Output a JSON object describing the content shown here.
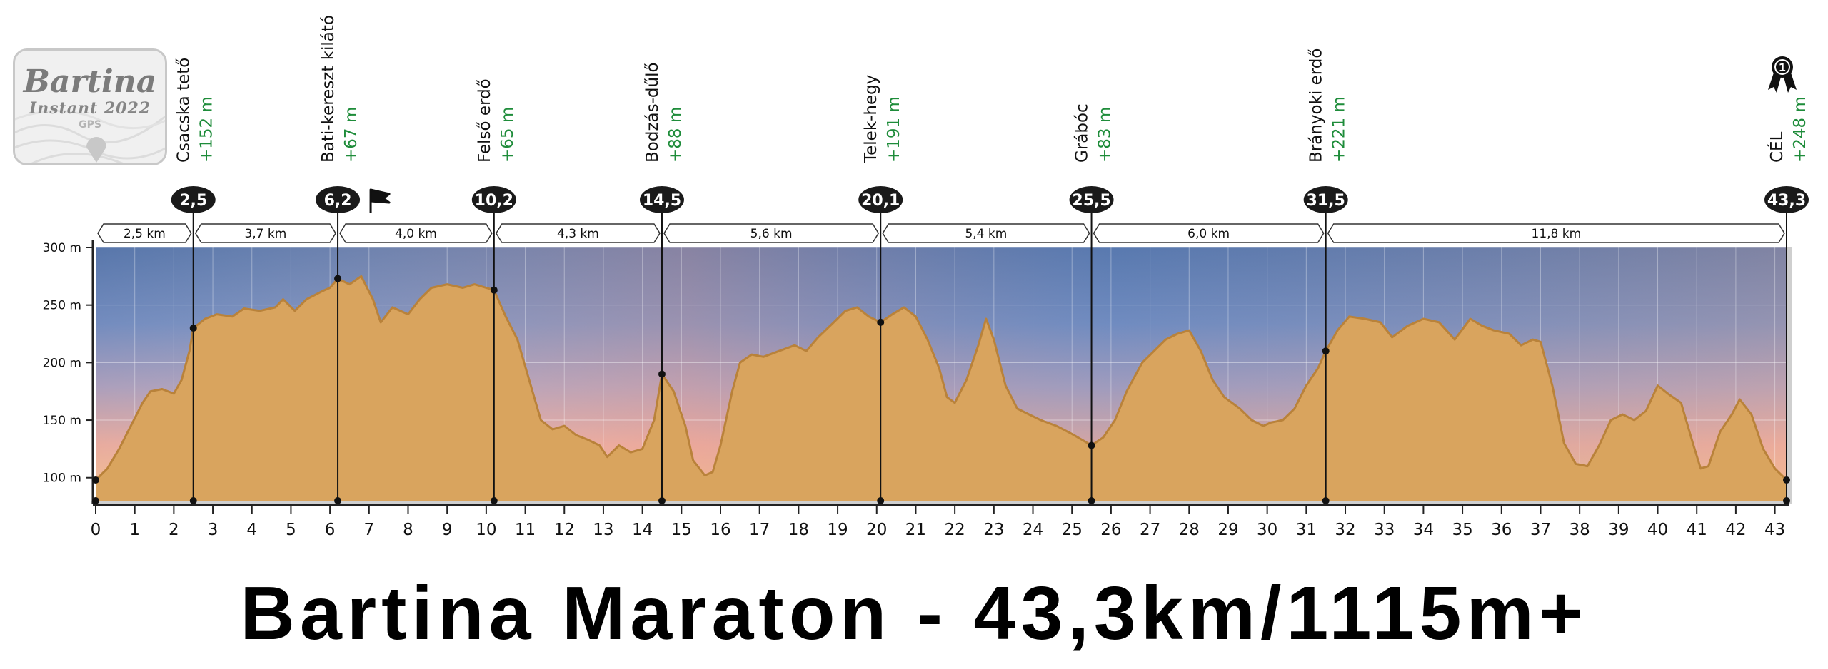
{
  "title": "Bartina Maraton - 43,3km/1115m+",
  "logo": {
    "title": "Bartina",
    "subtitle": "Instant 2022",
    "gps": "GPS"
  },
  "colors": {
    "profile_fill": "#d9a45e",
    "profile_stroke": "#b9823a",
    "marker": "#1a1a1a",
    "climb_text": "#1e8c3a",
    "sky_top": "#5f82b8",
    "sky_bottom": "#f1b98a"
  },
  "chart_data": {
    "type": "area",
    "xlabel": "",
    "ylabel": "",
    "xlim": [
      0,
      43.3
    ],
    "ylim": [
      80,
      300
    ],
    "x_ticks": [
      0,
      1,
      2,
      3,
      4,
      5,
      6,
      7,
      8,
      9,
      10,
      11,
      12,
      13,
      14,
      15,
      16,
      17,
      18,
      19,
      20,
      21,
      22,
      23,
      24,
      25,
      26,
      27,
      28,
      29,
      30,
      31,
      32,
      33,
      34,
      35,
      36,
      37,
      38,
      39,
      40,
      41,
      42,
      43
    ],
    "y_ticks": [
      {
        "value": 100,
        "label": "100 m"
      },
      {
        "value": 150,
        "label": "150 m"
      },
      {
        "value": 200,
        "label": "200 m"
      },
      {
        "value": 250,
        "label": "250 m"
      },
      {
        "value": 300,
        "label": "300 m"
      }
    ],
    "profile": [
      [
        0,
        98
      ],
      [
        0.3,
        108
      ],
      [
        0.6,
        125
      ],
      [
        0.9,
        145
      ],
      [
        1.2,
        165
      ],
      [
        1.4,
        175
      ],
      [
        1.7,
        177
      ],
      [
        2.0,
        173
      ],
      [
        2.2,
        185
      ],
      [
        2.4,
        210
      ],
      [
        2.5,
        230
      ],
      [
        2.8,
        238
      ],
      [
        3.1,
        242
      ],
      [
        3.5,
        240
      ],
      [
        3.8,
        247
      ],
      [
        4.2,
        245
      ],
      [
        4.6,
        248
      ],
      [
        4.8,
        255
      ],
      [
        5.1,
        245
      ],
      [
        5.4,
        255
      ],
      [
        5.8,
        262
      ],
      [
        6.0,
        265
      ],
      [
        6.2,
        273
      ],
      [
        6.5,
        268
      ],
      [
        6.8,
        275
      ],
      [
        7.1,
        255
      ],
      [
        7.3,
        235
      ],
      [
        7.6,
        248
      ],
      [
        8.0,
        242
      ],
      [
        8.3,
        255
      ],
      [
        8.6,
        265
      ],
      [
        9.0,
        268
      ],
      [
        9.4,
        265
      ],
      [
        9.7,
        268
      ],
      [
        10.0,
        265
      ],
      [
        10.2,
        263
      ],
      [
        10.5,
        240
      ],
      [
        10.8,
        220
      ],
      [
        11.1,
        185
      ],
      [
        11.4,
        150
      ],
      [
        11.7,
        142
      ],
      [
        12.0,
        145
      ],
      [
        12.3,
        137
      ],
      [
        12.6,
        133
      ],
      [
        12.9,
        128
      ],
      [
        13.1,
        118
      ],
      [
        13.4,
        128
      ],
      [
        13.7,
        122
      ],
      [
        14.0,
        125
      ],
      [
        14.3,
        150
      ],
      [
        14.5,
        190
      ],
      [
        14.8,
        175
      ],
      [
        15.1,
        145
      ],
      [
        15.3,
        115
      ],
      [
        15.6,
        102
      ],
      [
        15.8,
        105
      ],
      [
        16.0,
        128
      ],
      [
        16.3,
        175
      ],
      [
        16.5,
        200
      ],
      [
        16.8,
        207
      ],
      [
        17.1,
        205
      ],
      [
        17.5,
        210
      ],
      [
        17.9,
        215
      ],
      [
        18.2,
        210
      ],
      [
        18.5,
        222
      ],
      [
        18.9,
        235
      ],
      [
        19.2,
        245
      ],
      [
        19.5,
        248
      ],
      [
        19.8,
        240
      ],
      [
        20.1,
        235
      ],
      [
        20.4,
        242
      ],
      [
        20.7,
        248
      ],
      [
        21.0,
        240
      ],
      [
        21.3,
        220
      ],
      [
        21.6,
        195
      ],
      [
        21.8,
        170
      ],
      [
        22.0,
        165
      ],
      [
        22.3,
        185
      ],
      [
        22.6,
        215
      ],
      [
        22.8,
        238
      ],
      [
        23.0,
        220
      ],
      [
        23.3,
        180
      ],
      [
        23.6,
        160
      ],
      [
        23.9,
        155
      ],
      [
        24.2,
        150
      ],
      [
        24.6,
        145
      ],
      [
        25.0,
        138
      ],
      [
        25.3,
        132
      ],
      [
        25.5,
        128
      ],
      [
        25.8,
        135
      ],
      [
        26.1,
        150
      ],
      [
        26.4,
        175
      ],
      [
        26.8,
        200
      ],
      [
        27.1,
        210
      ],
      [
        27.4,
        220
      ],
      [
        27.7,
        225
      ],
      [
        28.0,
        228
      ],
      [
        28.3,
        210
      ],
      [
        28.6,
        185
      ],
      [
        28.9,
        170
      ],
      [
        29.3,
        160
      ],
      [
        29.6,
        150
      ],
      [
        29.9,
        145
      ],
      [
        30.1,
        148
      ],
      [
        30.4,
        150
      ],
      [
        30.7,
        160
      ],
      [
        31.0,
        180
      ],
      [
        31.3,
        195
      ],
      [
        31.5,
        210
      ],
      [
        31.8,
        228
      ],
      [
        32.1,
        240
      ],
      [
        32.5,
        238
      ],
      [
        32.9,
        235
      ],
      [
        33.2,
        222
      ],
      [
        33.6,
        232
      ],
      [
        34.0,
        238
      ],
      [
        34.4,
        235
      ],
      [
        34.8,
        220
      ],
      [
        35.2,
        238
      ],
      [
        35.5,
        232
      ],
      [
        35.8,
        228
      ],
      [
        36.2,
        225
      ],
      [
        36.5,
        215
      ],
      [
        36.8,
        220
      ],
      [
        37.0,
        218
      ],
      [
        37.3,
        180
      ],
      [
        37.6,
        130
      ],
      [
        37.9,
        112
      ],
      [
        38.2,
        110
      ],
      [
        38.5,
        128
      ],
      [
        38.8,
        150
      ],
      [
        39.1,
        155
      ],
      [
        39.4,
        150
      ],
      [
        39.7,
        158
      ],
      [
        40.0,
        180
      ],
      [
        40.3,
        172
      ],
      [
        40.6,
        165
      ],
      [
        40.9,
        130
      ],
      [
        41.1,
        108
      ],
      [
        41.3,
        110
      ],
      [
        41.6,
        140
      ],
      [
        41.9,
        155
      ],
      [
        42.1,
        168
      ],
      [
        42.4,
        155
      ],
      [
        42.7,
        125
      ],
      [
        43.0,
        108
      ],
      [
        43.3,
        98
      ]
    ],
    "checkpoints": [
      {
        "km": 2.5,
        "label": "2,5",
        "name": "Csacska tető",
        "climb": "+152 m",
        "elev": 230
      },
      {
        "km": 6.2,
        "label": "6,2",
        "name": "Bati-kereszt kilátó",
        "climb": "+67 m",
        "elev": 273
      },
      {
        "km": 10.2,
        "label": "10,2",
        "name": "Felső erdő",
        "climb": "+65 m",
        "elev": 263
      },
      {
        "km": 14.5,
        "label": "14,5",
        "name": "Bodzás-dűlő",
        "climb": "+88 m",
        "elev": 190
      },
      {
        "km": 20.1,
        "label": "20,1",
        "name": "Telek-hegy",
        "climb": "+191 m",
        "elev": 235
      },
      {
        "km": 25.5,
        "label": "25,5",
        "name": "Grábóc",
        "climb": "+83 m",
        "elev": 128
      },
      {
        "km": 31.5,
        "label": "31,5",
        "name": "Brányoki erdő",
        "climb": "+221 m",
        "elev": 210
      },
      {
        "km": 43.3,
        "label": "43,3",
        "name": "CÉL",
        "climb": "+248 m",
        "elev": 98
      }
    ],
    "segments": [
      {
        "from": 0,
        "to": 2.5,
        "label": "2,5 km"
      },
      {
        "from": 2.5,
        "to": 6.2,
        "label": "3,7 km"
      },
      {
        "from": 6.2,
        "to": 10.2,
        "label": "4,0 km"
      },
      {
        "from": 10.2,
        "to": 14.5,
        "label": "4,3 km"
      },
      {
        "from": 14.5,
        "to": 20.1,
        "label": "5,6 km"
      },
      {
        "from": 20.1,
        "to": 25.5,
        "label": "5,4 km"
      },
      {
        "from": 25.5,
        "to": 31.5,
        "label": "6,0 km"
      },
      {
        "from": 31.5,
        "to": 43.3,
        "label": "11,8 km"
      }
    ],
    "start_elev": 98,
    "flag_icon_after_km": 6.2,
    "finish_icon": "medal-icon"
  }
}
